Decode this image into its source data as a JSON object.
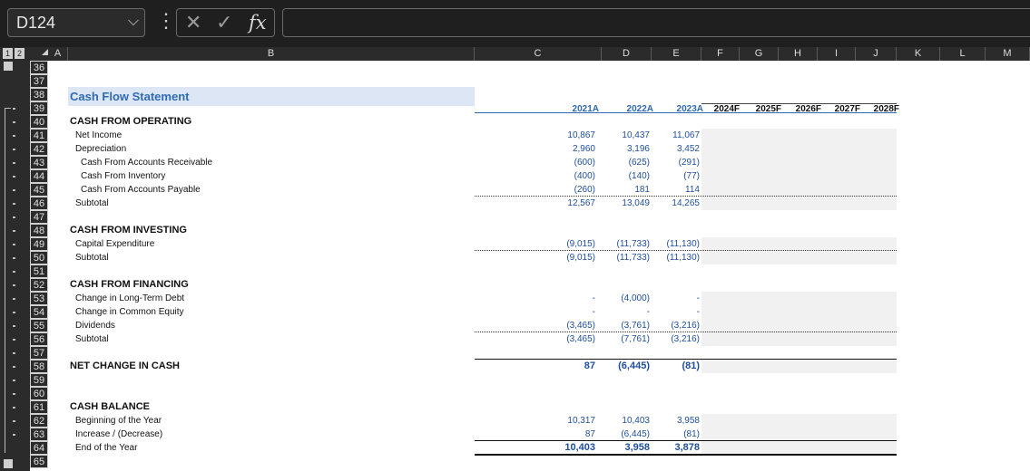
{
  "formula_bar": {
    "name_box": "D124",
    "dropdown_glyph": "⌵",
    "dots_glyph": "⋮",
    "cancel_glyph": "✕",
    "enter_glyph": "✓",
    "fx_glyph": "fx",
    "formula": ""
  },
  "outline_levels": [
    "1",
    "2"
  ],
  "columns": [
    "A",
    "B",
    "C",
    "D",
    "E",
    "F",
    "G",
    "H",
    "I",
    "J",
    "K",
    "L",
    "M"
  ],
  "rows": [
    "36",
    "37",
    "38",
    "39",
    "40",
    "41",
    "42",
    "43",
    "44",
    "45",
    "46",
    "47",
    "48",
    "49",
    "50",
    "51",
    "52",
    "53",
    "54",
    "55",
    "56",
    "57",
    "58",
    "59",
    "60",
    "61",
    "62",
    "63",
    "64",
    "65"
  ],
  "sheet": {
    "title": "Cash Flow Statement",
    "years_actual": [
      "2021A",
      "2022A",
      "2023A"
    ],
    "years_forecast": [
      "2024F",
      "2025F",
      "2026F",
      "2027F",
      "2028F"
    ],
    "sections": [
      {
        "header": "CASH FROM OPERATING",
        "lines": [
          {
            "label": "Net Income",
            "values": [
              "10,867",
              "10,437",
              "11,067"
            ]
          },
          {
            "label": "Depreciation",
            "values": [
              "2,960",
              "3,196",
              "3,452"
            ]
          },
          {
            "label": "Cash From Accounts Receivable",
            "values": [
              "(600)",
              "(625)",
              "(291)"
            ]
          },
          {
            "label": "Cash From Inventory",
            "values": [
              "(400)",
              "(140)",
              "(77)"
            ]
          },
          {
            "label": "Cash From Accounts Payable",
            "values": [
              "(260)",
              "181",
              "114"
            ]
          },
          {
            "label": "Subtotal",
            "values": [
              "12,567",
              "13,049",
              "14,265"
            ]
          }
        ]
      },
      {
        "header": "CASH FROM INVESTING",
        "lines": [
          {
            "label": "Capital Expenditure",
            "values": [
              "(9,015)",
              "(11,733)",
              "(11,130)"
            ]
          },
          {
            "label": "Subtotal",
            "values": [
              "(9,015)",
              "(11,733)",
              "(11,130)"
            ]
          }
        ]
      },
      {
        "header": "CASH FROM FINANCING",
        "lines": [
          {
            "label": "Change in Long-Term Debt",
            "values": [
              "-",
              "(4,000)",
              "-"
            ]
          },
          {
            "label": "Change in Common Equity",
            "values": [
              "-",
              "-",
              "-"
            ]
          },
          {
            "label": "Dividends",
            "values": [
              "(3,465)",
              "(3,761)",
              "(3,216)"
            ]
          },
          {
            "label": "Subtotal",
            "values": [
              "(3,465)",
              "(7,761)",
              "(3,216)"
            ]
          }
        ]
      },
      {
        "header": "NET CHANGE IN CASH",
        "values": [
          "87",
          "(6,445)",
          "(81)"
        ]
      },
      {
        "header": "CASH BALANCE",
        "lines": [
          {
            "label": "Beginning of the Year",
            "values": [
              "10,317",
              "10,403",
              "3,958"
            ]
          },
          {
            "label": "Increase / (Decrease)",
            "values": [
              "87",
              "(6,445)",
              "(81)"
            ]
          },
          {
            "label": "End of the Year",
            "values": [
              "10,403",
              "3,958",
              "3,878"
            ]
          }
        ]
      }
    ]
  },
  "colors": {
    "title_fill": "#dce6f4",
    "title_text": "#2f6bb3",
    "number_text": "#1f4e9c",
    "year_text": "#2e6ab3",
    "forecast_fill": "#f1f1f1",
    "header_bg": "#2b2b2b"
  }
}
